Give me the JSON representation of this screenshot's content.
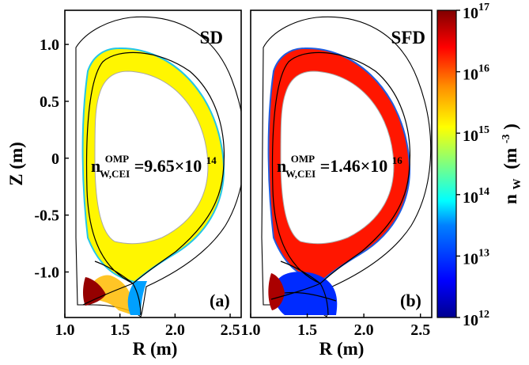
{
  "chart_data": {
    "type": "heatmap",
    "colormap": "jet",
    "color_scale": "log",
    "panels": [
      {
        "id": "a",
        "title": "SD",
        "label": "(a)",
        "annotation": {
          "symbol": "n",
          "superscript": "OMP",
          "subscript": "W,CEI",
          "value_mantissa": "=9.65×10",
          "value_exponent": "14",
          "value": 965000000000000.0
        },
        "core_level_log10": 15.15,
        "private_flux_max_log10": 16.9
      },
      {
        "id": "b",
        "title": "SFD",
        "label": "(b)",
        "annotation": {
          "symbol": "n",
          "superscript": "OMP",
          "subscript": "W,CEI",
          "value_mantissa": "=1.46×10",
          "value_exponent": "16",
          "value": 1.46e+16
        },
        "core_level_log10": 16.3,
        "private_flux_max_log10": 16.8
      }
    ],
    "xlabel": "R (m)",
    "ylabel": "Z (m)",
    "xlim": [
      1.0,
      2.6
    ],
    "ylim": [
      -1.4,
      1.3
    ],
    "xticks": [
      "1.0",
      "1.5",
      "2.0",
      "2.5"
    ],
    "yticks": [
      "1.0",
      "0.5",
      "0",
      "-0.5",
      "-1.0"
    ],
    "colorbar": {
      "label_symbol": "n",
      "label_subscript": "W",
      "label_unit_open": "(m",
      "label_unit_exp": "-3",
      "label_unit_close": ")",
      "range_log10": [
        12,
        17
      ],
      "tick_base": "10",
      "tick_exponents": [
        "17",
        "16",
        "15",
        "14",
        "13",
        "12"
      ]
    }
  },
  "colors": {
    "frame": "#000000",
    "background": "#ffffff",
    "edge_blue": "#1e5ce0",
    "edge_cyan": "#22c6e8"
  }
}
